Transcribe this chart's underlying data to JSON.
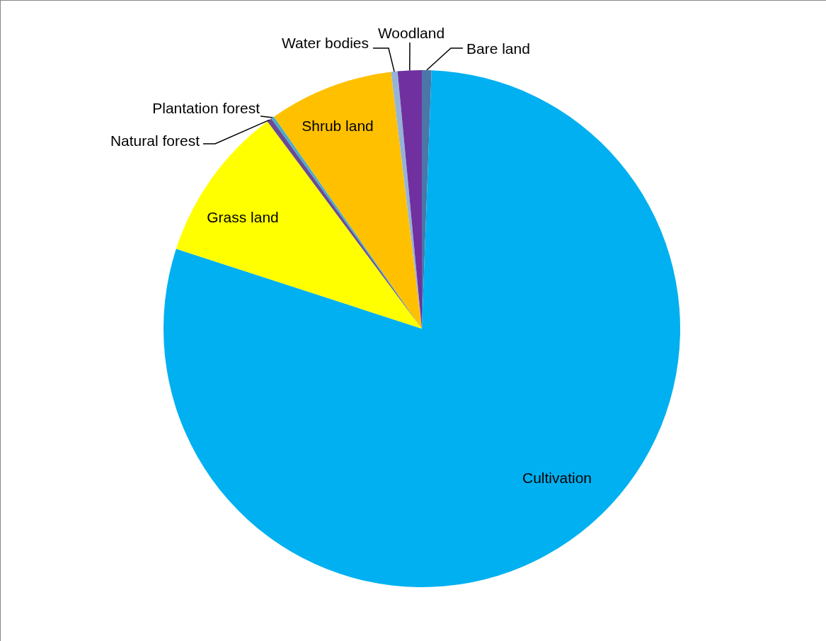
{
  "chart_data": {
    "type": "pie",
    "categories": [
      "Bare land",
      "Cultivation",
      "Grass land",
      "Natural forest",
      "Plantation forest",
      "Shrub land",
      "Water bodies",
      "Woodland"
    ],
    "values": [
      0.6,
      79.4,
      9.8,
      0.3,
      0.2,
      7.8,
      0.4,
      1.5
    ],
    "colors": [
      "#4a76a8",
      "#00b0f0",
      "#ffff00",
      "#6b4a94",
      "#4bacc6",
      "#ffc000",
      "#95b3d7",
      "#7030a0"
    ]
  }
}
